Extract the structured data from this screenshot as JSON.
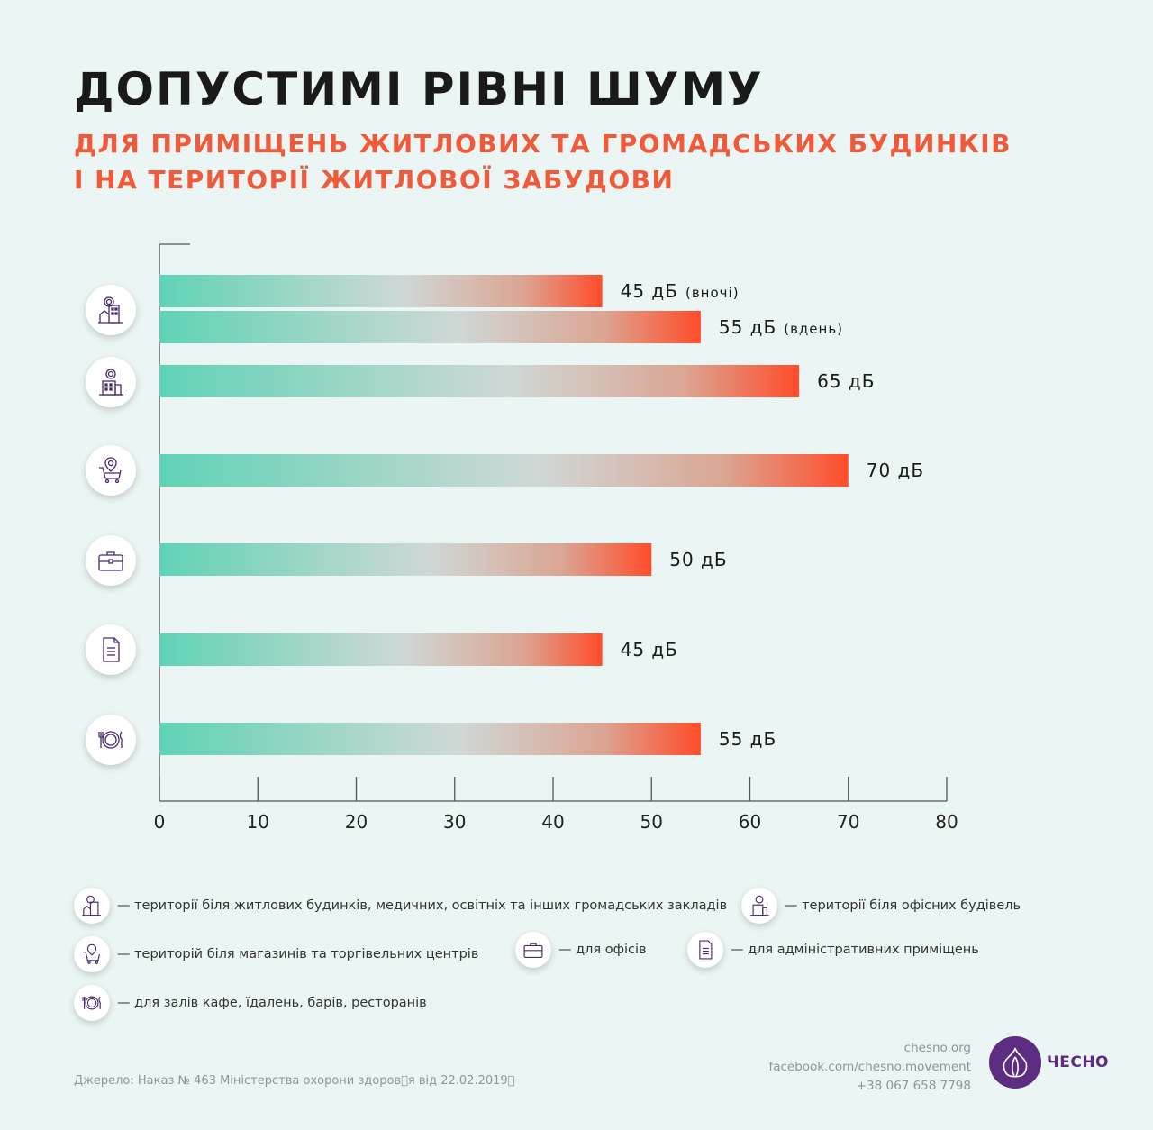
{
  "header": {
    "title": "ДОПУСТИМІ РІВНІ ШУМУ",
    "subtitle_line1": "ДЛЯ ПРИМІЩЕНЬ ЖИТЛОВИХ ТА ГРОМАДСЬКИХ БУДИНКІВ",
    "subtitle_line2": "І НА ТЕРИТОРІЇ ЖИТЛОВОЇ ЗАБУДОВИ"
  },
  "colors": {
    "bar_start": "#5fd3b5",
    "bar_mid": "#cfd8d6",
    "bar_end": "#ff4d2a",
    "accent": "#f05a3a",
    "brand": "#5c2d80"
  },
  "chart_data": {
    "type": "bar",
    "orientation": "horizontal",
    "xlim": [
      0,
      80
    ],
    "xticks": [
      0,
      10,
      20,
      30,
      40,
      50,
      60,
      70,
      80
    ],
    "unit": "дБ",
    "bars": [
      {
        "category": "residential",
        "icon": "residential-building-icon",
        "value": 45,
        "label": "45 дБ",
        "note": "(вночі)"
      },
      {
        "category": "residential",
        "icon": "residential-building-icon",
        "value": 55,
        "label": "55 дБ",
        "note": "(вдень)"
      },
      {
        "category": "offices-territory",
        "icon": "office-building-icon",
        "value": 65,
        "label": "65 дБ",
        "note": ""
      },
      {
        "category": "shops",
        "icon": "shopping-cart-icon",
        "value": 70,
        "label": "70 дБ",
        "note": ""
      },
      {
        "category": "offices",
        "icon": "briefcase-icon",
        "value": 50,
        "label": "50 дБ",
        "note": ""
      },
      {
        "category": "administrative",
        "icon": "document-icon",
        "value": 45,
        "label": "45 дБ",
        "note": ""
      },
      {
        "category": "cafes",
        "icon": "plate-cutlery-icon",
        "value": 55,
        "label": "55 дБ",
        "note": ""
      }
    ]
  },
  "legend": {
    "residential": "— території біля житлових будинків, медичних, освітніх та інших громадських закладів",
    "office_buildings": "— території біля офісних будівель",
    "shops": "— територій біля магазинів та торгівельних центрів",
    "offices": "— для офісів",
    "administrative": "— для адміністративних приміщень",
    "cafes": "— для залів кафе, їдалень, барів, ресторанів"
  },
  "footer": {
    "source": "Джерело: Наказ № 463 Міністерства охорони здоров\u0000я від 22.02.2019\u0000",
    "site": "chesno.org",
    "facebook": "facebook.com/chesno.movement",
    "phone": "+38 067 658 7798",
    "logo_text": "ЧЕСНО"
  }
}
